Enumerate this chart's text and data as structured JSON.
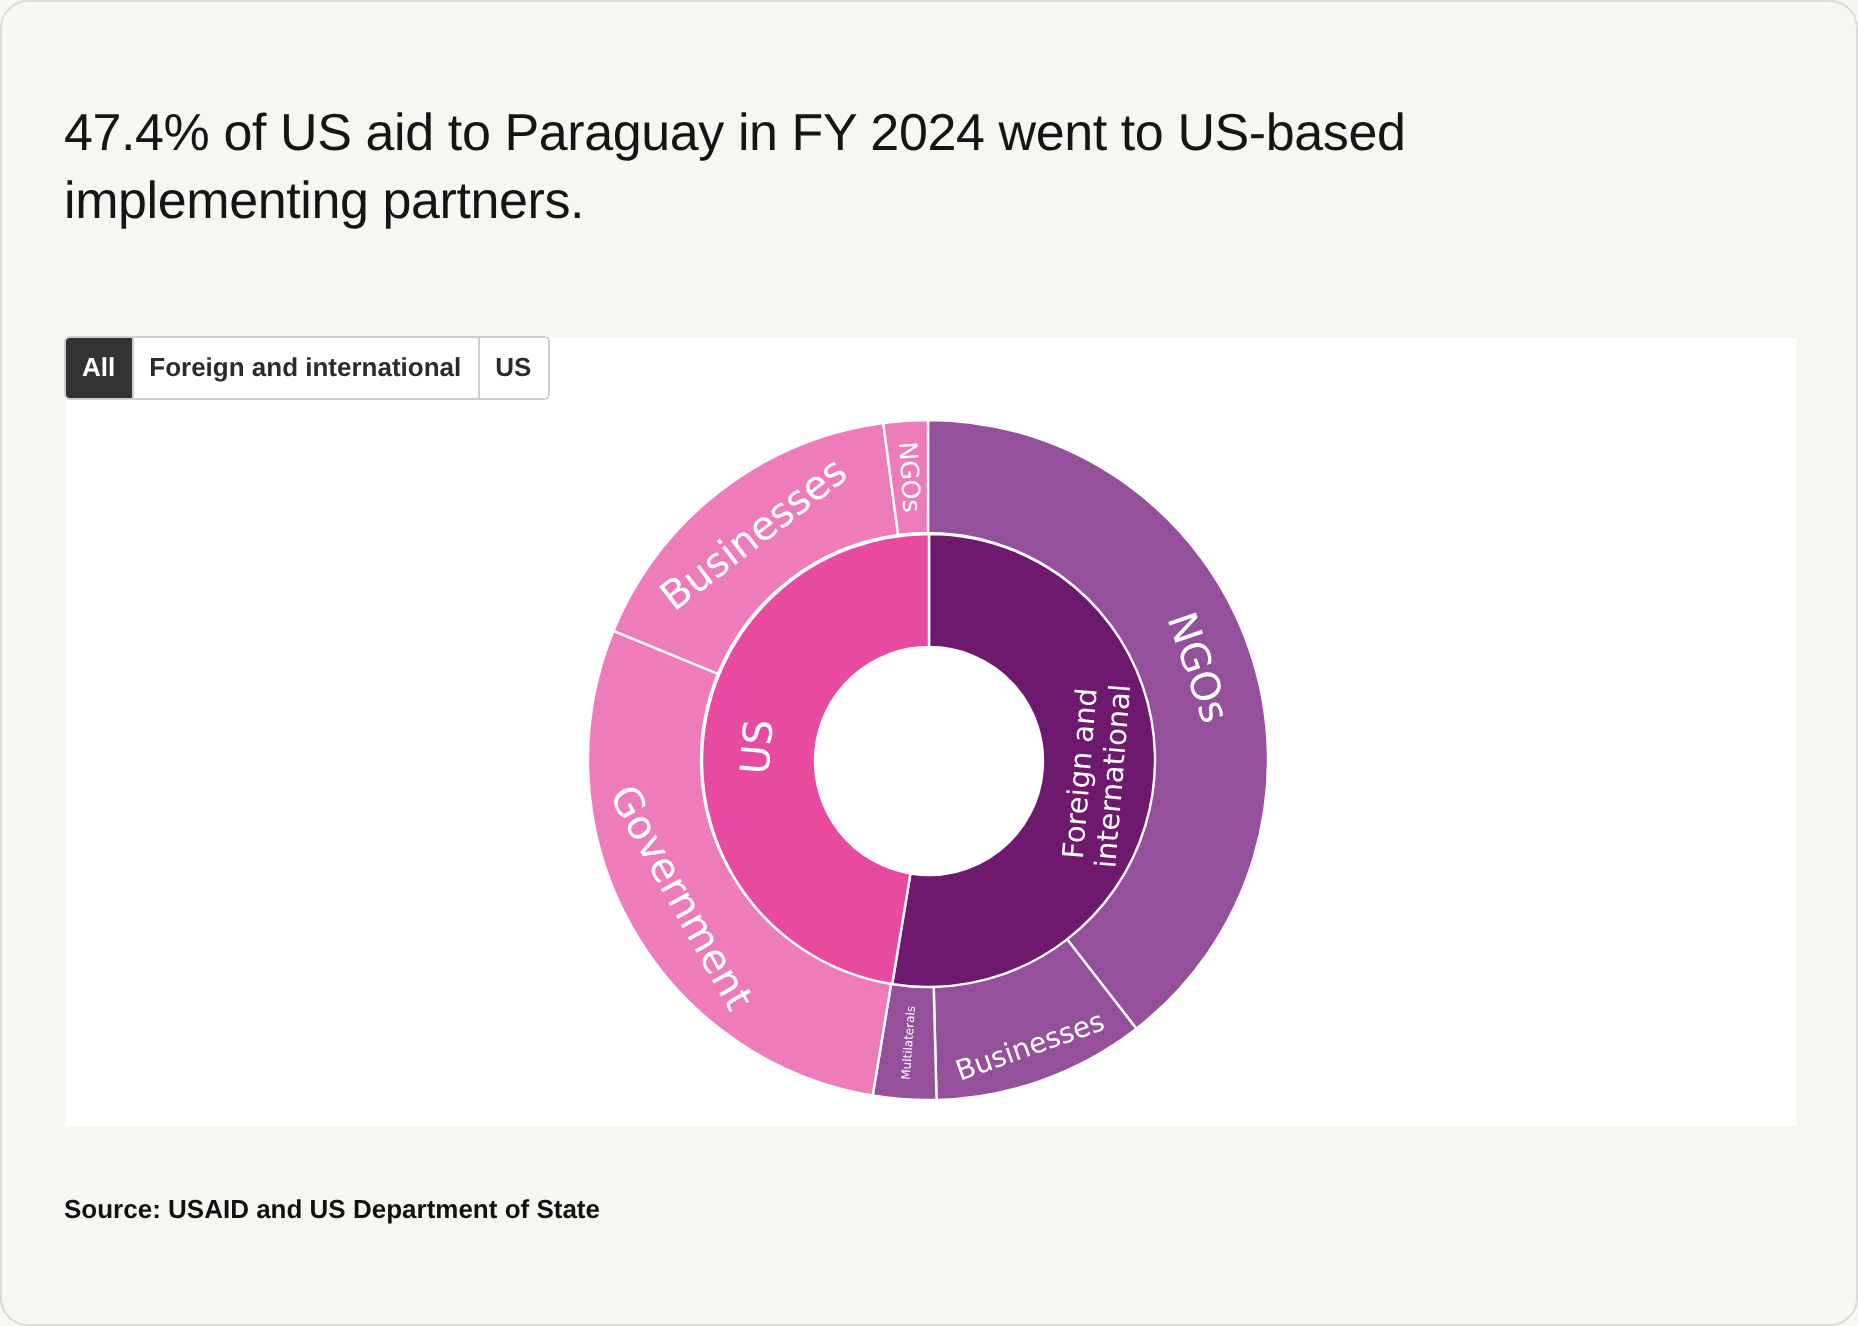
{
  "chart_data": [
    {
      "type": "donut",
      "title": "47.4% of US aid to Paraguay in FY 2024 went to US-based implementing partners.",
      "categories": [
        "Foreign and international",
        "US"
      ],
      "values": [
        52.6,
        47.4
      ],
      "colors": [
        "#6e186e",
        "#e84a9f"
      ],
      "annotations": [
        "All",
        "Foreign and international",
        "US"
      ]
    },
    {
      "type": "donut",
      "categories": [
        "NGOs",
        "Businesses",
        "Multilaterals",
        "Government",
        "Businesses",
        "NGOs"
      ],
      "values": [
        39.5,
        10.1,
        3.0,
        28.6,
        16.7,
        2.1
      ],
      "colors": [
        "#94509a",
        "#94509a",
        "#94509a",
        "#ef7cba",
        "#ef7cba",
        "#ef7cba"
      ],
      "annotations": [
        "Source: USAID and US Department of State"
      ]
    }
  ]
}
